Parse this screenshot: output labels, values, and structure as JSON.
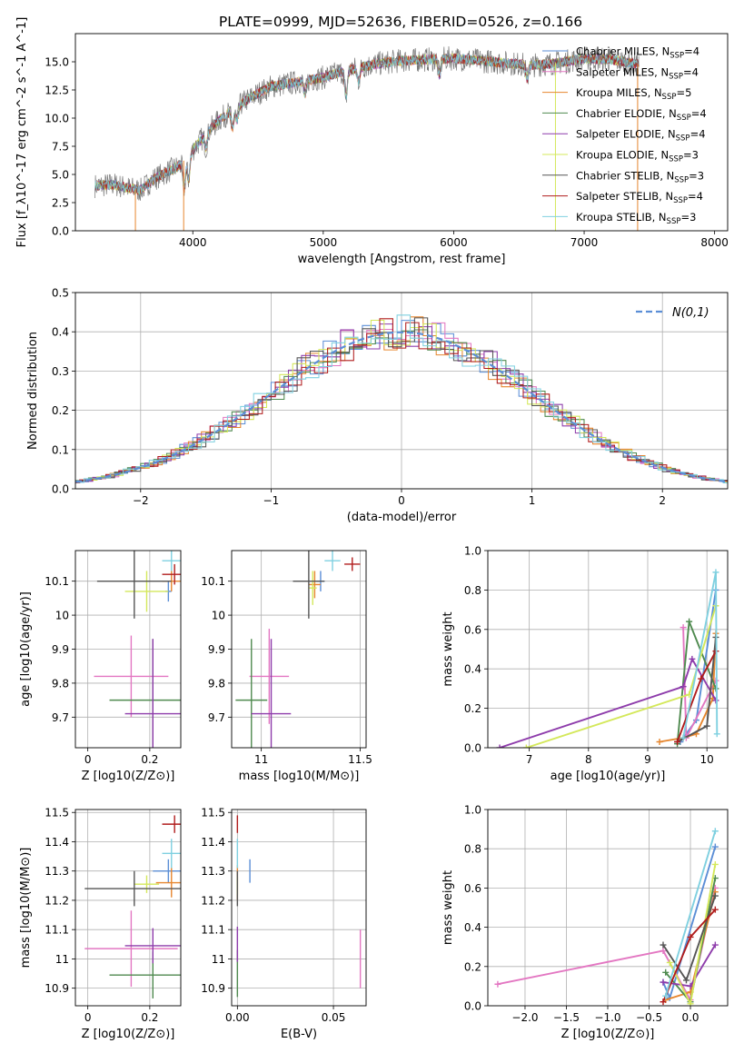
{
  "title": "PLATE=0999, MJD=52636, FIBERID=0526, z=0.166",
  "colors": {
    "chabrier_miles": "#5b8ed6",
    "salpeter_miles": "#e377c2",
    "kroupa_miles": "#e6862e",
    "chabrier_elodie": "#4f8a4f",
    "salpeter_elodie": "#8e3cab",
    "kroupa_elodie": "#d4e85b",
    "chabrier_stelib": "#555555",
    "salpeter_stelib": "#b01c1c",
    "kroupa_stelib": "#7fd0e0",
    "gaussian": "#5b8ed6"
  },
  "chart_data": [
    {
      "id": "spectrum",
      "type": "line",
      "xlabel": "wavelength [Angstrom, rest frame]",
      "ylabel": "Flux [f_λ10^-17 erg cm^-2 s^-1 A^-1]",
      "xlim": [
        3100,
        8100
      ],
      "ylim": [
        0,
        17.5
      ],
      "xticks": [
        4000,
        5000,
        6000,
        7000,
        8000
      ],
      "yticks": [
        0.0,
        2.5,
        5.0,
        7.5,
        10.0,
        12.5,
        15.0
      ],
      "ytick_labels": [
        "0.0",
        "2.5",
        "5.0",
        "7.5",
        "10.0",
        "12.5",
        "15.0"
      ],
      "legend_position": "right",
      "legend": [
        "Chabrier MILES, N_SSP=4",
        "Salpeter MILES, N_SSP=4",
        "Kroupa MILES, N_SSP=5",
        "Chabrier ELODIE, N_SSP=4",
        "Salpeter ELODIE, N_SSP=4",
        "Kroupa ELODIE, N_SSP=3",
        "Chabrier STELIB, N_SSP=3",
        "Salpeter STELIB, N_SSP=4",
        "Kroupa STELIB, N_SSP=3"
      ],
      "continuum": {
        "x": [
          3250,
          3400,
          3500,
          3600,
          3700,
          3800,
          3900,
          4000,
          4100,
          4200,
          4300,
          4400,
          4500,
          4600,
          4800,
          5000,
          5200,
          5400,
          5600,
          5800,
          6000,
          6200,
          6400,
          6600,
          6800,
          7000,
          7200,
          7400
        ],
        "y": [
          4.0,
          4.1,
          3.8,
          3.6,
          4.6,
          5.2,
          5.8,
          7.2,
          8.6,
          9.8,
          10.7,
          11.5,
          12.2,
          12.8,
          13.2,
          13.6,
          14.3,
          14.8,
          15.1,
          15.2,
          15.3,
          15.1,
          14.9,
          14.7,
          14.9,
          15.3,
          15.2,
          14.8
        ]
      }
    },
    {
      "id": "residuals",
      "type": "histogram",
      "xlabel": "(data-model)/error",
      "ylabel": "Normed distribution",
      "xlim": [
        -2.5,
        2.5
      ],
      "ylim": [
        0,
        0.5
      ],
      "xticks": [
        -2,
        -1,
        0,
        1,
        2
      ],
      "yticks": [
        0.0,
        0.1,
        0.2,
        0.3,
        0.4,
        0.5
      ],
      "ytick_labels": [
        "0.0",
        "0.1",
        "0.2",
        "0.3",
        "0.4",
        "0.5"
      ],
      "bin_width": 0.1,
      "legend": "N(0,1)",
      "legend_position": "top-right"
    },
    {
      "id": "age_vs_Z",
      "type": "errorbar",
      "xlabel": "Z [log10(Z/Z⊙)]",
      "ylabel": "age  [log10(age/yr)]",
      "xlim": [
        -0.04,
        0.3
      ],
      "ylim": [
        9.61,
        10.19
      ],
      "xticks": [
        0.0,
        0.2
      ],
      "yticks": [
        9.7,
        9.8,
        9.9,
        10.0,
        10.1
      ],
      "points": [
        {
          "x": 0.26,
          "y": 10.07,
          "xerr": 0.01,
          "yerr": 0.03
        },
        {
          "x": 0.14,
          "y": 9.82,
          "xerr": 0.12,
          "yerr": 0.12
        },
        {
          "x": 0.27,
          "y": 10.1,
          "xerr": 0.03,
          "yerr": 0.03
        },
        {
          "x": 0.21,
          "y": 9.75,
          "xerr": 0.14,
          "yerr": 0.18
        },
        {
          "x": 0.21,
          "y": 9.71,
          "xerr": 0.09,
          "yerr": 0.22
        },
        {
          "x": 0.19,
          "y": 10.07,
          "xerr": 0.07,
          "yerr": 0.06
        },
        {
          "x": 0.15,
          "y": 10.1,
          "xerr": 0.12,
          "yerr": 0.11
        },
        {
          "x": 0.28,
          "y": 10.12,
          "xerr": 0.04,
          "yerr": 0.03
        },
        {
          "x": 0.27,
          "y": 10.16,
          "xerr": 0.03,
          "yerr": 0.03
        }
      ]
    },
    {
      "id": "age_vs_mass",
      "type": "errorbar",
      "xlabel": "mass [log10(M/M⊙)]",
      "ylabel": "",
      "xlim": [
        10.85,
        11.53
      ],
      "ylim": [
        9.61,
        10.19
      ],
      "xticks": [
        11.0,
        11.5
      ],
      "yticks": [
        9.7,
        9.8,
        9.9,
        10.0,
        10.1
      ],
      "points": [
        {
          "x": 11.3,
          "y": 10.1,
          "xerr": 0.02,
          "yerr": 0.03
        },
        {
          "x": 11.04,
          "y": 9.82,
          "xerr": 0.1,
          "yerr": 0.14
        },
        {
          "x": 11.27,
          "y": 10.09,
          "xerr": 0.03,
          "yerr": 0.04
        },
        {
          "x": 10.95,
          "y": 9.75,
          "xerr": 0.08,
          "yerr": 0.18
        },
        {
          "x": 11.05,
          "y": 9.71,
          "xerr": 0.1,
          "yerr": 0.22
        },
        {
          "x": 11.26,
          "y": 10.08,
          "xerr": 0.02,
          "yerr": 0.05
        },
        {
          "x": 11.24,
          "y": 10.1,
          "xerr": 0.08,
          "yerr": 0.11
        },
        {
          "x": 11.46,
          "y": 10.15,
          "xerr": 0.04,
          "yerr": 0.02
        },
        {
          "x": 11.36,
          "y": 10.16,
          "xerr": 0.04,
          "yerr": 0.03
        }
      ]
    },
    {
      "id": "mass_weight_vs_age",
      "type": "line",
      "xlabel": "age  [log10(age/yr)]",
      "ylabel": "mass weight",
      "xlim": [
        6.3,
        10.35
      ],
      "ylim": [
        0,
        1
      ],
      "xticks": [
        7,
        8,
        9,
        10
      ],
      "yticks": [
        0.0,
        0.2,
        0.4,
        0.6,
        0.8,
        1.0
      ],
      "ytick_labels": [
        "0.0",
        "0.2",
        "0.4",
        "0.6",
        "0.8",
        "1.0"
      ],
      "series": [
        {
          "x": [
            9.55,
            9.82,
            10.15
          ],
          "y": [
            0.03,
            0.14,
            0.8
          ]
        },
        {
          "x": [
            9.6,
            9.65,
            10.15
          ],
          "y": [
            0.61,
            0.05,
            0.34
          ]
        },
        {
          "x": [
            9.2,
            9.6,
            9.82,
            10.1,
            10.15
          ],
          "y": [
            0.03,
            0.05,
            0.07,
            0.25,
            0.58
          ]
        },
        {
          "x": [
            9.5,
            9.7,
            10.15
          ],
          "y": [
            0.02,
            0.64,
            0.3
          ]
        },
        {
          "x": [
            6.5,
            9.6,
            9.75,
            10.15
          ],
          "y": [
            0.0,
            0.31,
            0.45,
            0.24
          ]
        },
        {
          "x": [
            6.95,
            9.7,
            10.15
          ],
          "y": [
            0.0,
            0.27,
            0.72
          ]
        },
        {
          "x": [
            9.5,
            10.0,
            10.15
          ],
          "y": [
            0.03,
            0.11,
            0.56
          ]
        },
        {
          "x": [
            9.5,
            9.9,
            10.15
          ],
          "y": [
            0.03,
            0.35,
            0.49
          ]
        },
        {
          "x": [
            9.6,
            10.15,
            10.17
          ],
          "y": [
            0.05,
            0.89,
            0.07
          ]
        }
      ]
    },
    {
      "id": "mass_vs_Z",
      "type": "errorbar",
      "xlabel": "Z [log10(Z/Z⊙)]",
      "ylabel": "mass [log10(M/M⊙)]",
      "xlim": [
        -0.04,
        0.3
      ],
      "ylim": [
        10.84,
        11.51
      ],
      "xticks": [
        0.0,
        0.2
      ],
      "yticks": [
        10.9,
        11.0,
        11.1,
        11.2,
        11.3,
        11.4,
        11.5
      ],
      "points": [
        {
          "x": 0.26,
          "y": 11.3,
          "xerr": 0.05,
          "yerr": 0.04
        },
        {
          "x": 0.14,
          "y": 11.035,
          "xerr": 0.15,
          "yerr": 0.13
        },
        {
          "x": 0.27,
          "y": 11.26,
          "xerr": 0.05,
          "yerr": 0.05
        },
        {
          "x": 0.21,
          "y": 10.945,
          "xerr": 0.14,
          "yerr": 0.08
        },
        {
          "x": 0.21,
          "y": 11.045,
          "xerr": 0.09,
          "yerr": 0.06
        },
        {
          "x": 0.19,
          "y": 11.255,
          "xerr": 0.04,
          "yerr": 0.03
        },
        {
          "x": 0.15,
          "y": 11.24,
          "xerr": 0.16,
          "yerr": 0.06
        },
        {
          "x": 0.28,
          "y": 11.46,
          "xerr": 0.04,
          "yerr": 0.03
        },
        {
          "x": 0.27,
          "y": 11.36,
          "xerr": 0.03,
          "yerr": 0.05
        }
      ]
    },
    {
      "id": "mass_vs_ebv",
      "type": "errorbar",
      "xlabel": "E(B-V)",
      "ylabel": "",
      "xlim": [
        -0.003,
        0.067
      ],
      "ylim": [
        10.84,
        11.51
      ],
      "xticks": [
        0.0,
        0.05
      ],
      "xtick_labels": [
        "0.00",
        "0.05"
      ],
      "yticks": [
        10.9,
        11.0,
        11.1,
        11.2,
        11.3,
        11.4,
        11.5
      ],
      "points": [
        {
          "x": 0.0065,
          "y": 11.3,
          "yerr": 0.04
        },
        {
          "x": 0.064,
          "y": 11.0,
          "yerr": 0.1
        },
        {
          "x": 0.0,
          "y": 11.26,
          "yerr": 0.06
        },
        {
          "x": 0.0,
          "y": 10.95,
          "yerr": 0.08
        },
        {
          "x": 0.0,
          "y": 11.05,
          "yerr": 0.06
        },
        {
          "x": 0.0,
          "y": 11.25,
          "yerr": 0.03
        },
        {
          "x": 0.0,
          "y": 11.24,
          "yerr": 0.06
        },
        {
          "x": 0.0,
          "y": 11.46,
          "yerr": 0.03
        },
        {
          "x": 0.0,
          "y": 11.36,
          "yerr": 0.05
        }
      ]
    },
    {
      "id": "mass_weight_vs_Z",
      "type": "line",
      "xlabel": "Z [log10(Z/Z⊙)]",
      "ylabel": "mass weight",
      "xlim": [
        -2.45,
        0.45
      ],
      "ylim": [
        0,
        1
      ],
      "xticks": [
        -2.0,
        -1.5,
        -1.0,
        -0.5,
        0.0
      ],
      "xtick_labels": [
        "−2.0",
        "−1.5",
        "−1.0",
        "−0.5",
        "0.0"
      ],
      "yticks": [
        0.0,
        0.2,
        0.4,
        0.6,
        0.8,
        1.0
      ],
      "ytick_labels": [
        "0.0",
        "0.2",
        "0.4",
        "0.6",
        "0.8",
        "1.0"
      ],
      "series": [
        {
          "x": [
            -0.33,
            -0.25,
            0.3
          ],
          "y": [
            0.12,
            0.04,
            0.81
          ]
        },
        {
          "x": [
            -2.33,
            -0.33,
            0.0,
            0.3
          ],
          "y": [
            0.11,
            0.28,
            0.03,
            0.6
          ]
        },
        {
          "x": [
            -0.3,
            0.0,
            0.3
          ],
          "y": [
            0.03,
            0.07,
            0.58
          ]
        },
        {
          "x": [
            -0.3,
            0.0,
            0.3
          ],
          "y": [
            0.17,
            0.02,
            0.65
          ]
        },
        {
          "x": [
            -0.33,
            0.0,
            0.3
          ],
          "y": [
            0.12,
            0.1,
            0.31
          ]
        },
        {
          "x": [
            -0.25,
            0.0,
            0.3
          ],
          "y": [
            0.22,
            0.01,
            0.72
          ]
        },
        {
          "x": [
            -0.33,
            -0.05,
            0.3
          ],
          "y": [
            0.31,
            0.13,
            0.56
          ]
        },
        {
          "x": [
            -0.33,
            0.0,
            0.3
          ],
          "y": [
            0.02,
            0.35,
            0.49
          ]
        },
        {
          "x": [
            -0.3,
            0.3
          ],
          "y": [
            0.05,
            0.89
          ]
        }
      ]
    }
  ]
}
